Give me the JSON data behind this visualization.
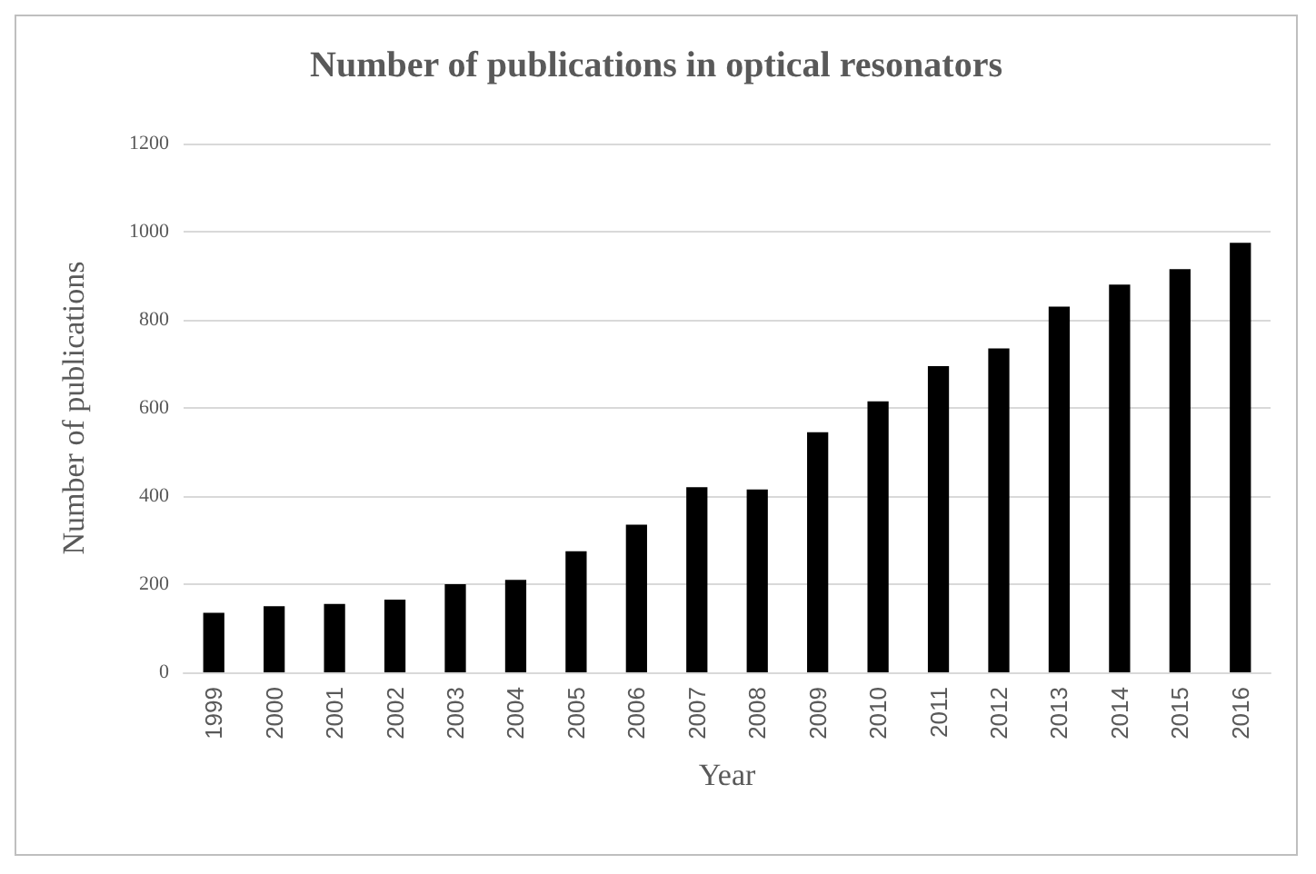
{
  "chart_data": {
    "type": "bar",
    "title": "Number of publications in optical resonators",
    "xlabel": "Year",
    "ylabel": "Number of publications",
    "categories": [
      "1999",
      "2000",
      "2001",
      "2002",
      "2003",
      "2004",
      "2005",
      "2006",
      "2007",
      "2008",
      "2009",
      "2010",
      "2011",
      "2012",
      "2013",
      "2014",
      "2015",
      "2016"
    ],
    "values": [
      135,
      150,
      155,
      165,
      200,
      210,
      275,
      335,
      420,
      415,
      545,
      615,
      695,
      735,
      830,
      880,
      915,
      975
    ],
    "color": "#000000",
    "ylim": [
      0,
      1200
    ],
    "yticks": [
      0,
      200,
      400,
      600,
      800,
      1000,
      1200
    ],
    "grid": "y"
  }
}
